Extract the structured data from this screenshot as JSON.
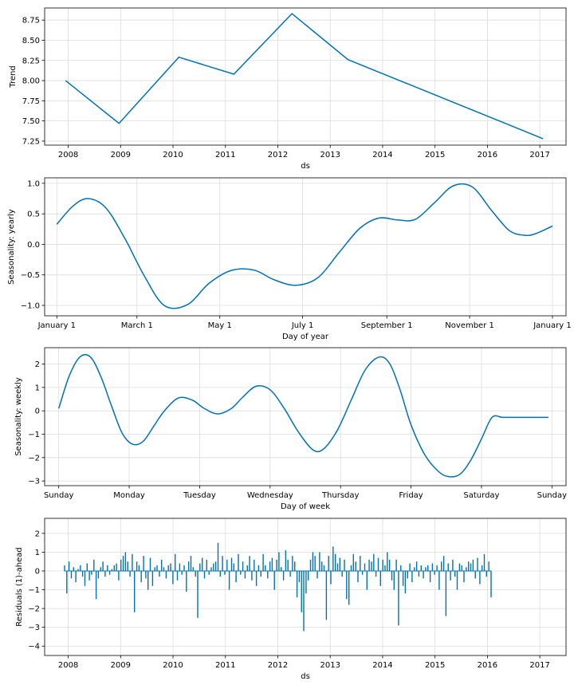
{
  "colors": {
    "line": "#0072B2",
    "grid": "#dcdcdc",
    "axis": "#000000"
  },
  "chart_data": [
    {
      "id": "trend",
      "type": "line",
      "xlabel": "ds",
      "ylabel": "Trend",
      "xlim": [
        2007.55,
        2017.5
      ],
      "ylim": [
        7.2,
        8.9
      ],
      "xticks": [
        2008,
        2009,
        2010,
        2011,
        2012,
        2013,
        2014,
        2015,
        2016,
        2017
      ],
      "xtick_labels": [
        "2008",
        "2009",
        "2010",
        "2011",
        "2012",
        "2013",
        "2014",
        "2015",
        "2016",
        "2017"
      ],
      "yticks": [
        7.25,
        7.5,
        7.75,
        8.0,
        8.25,
        8.5,
        8.75
      ],
      "ytick_labels": [
        "7.25",
        "7.50",
        "7.75",
        "8.00",
        "8.25",
        "8.50",
        "8.75"
      ],
      "grid": true,
      "series": [
        {
          "x": [
            2007.95,
            2008.97,
            2010.11,
            2011.16,
            2012.27,
            2013.34,
            2017.06
          ],
          "y": [
            8.0,
            7.47,
            8.29,
            8.08,
            8.83,
            8.26,
            7.28
          ]
        }
      ]
    },
    {
      "id": "yearly",
      "type": "line",
      "xlabel": "Day of year",
      "ylabel": "Seasonality: yearly",
      "xlim": [
        -9,
        375
      ],
      "ylim": [
        -1.17,
        1.09
      ],
      "xticks": [
        0,
        59,
        120,
        181,
        243,
        304,
        365
      ],
      "xtick_labels": [
        "January 1",
        "March 1",
        "May 1",
        "July 1",
        "September 1",
        "November 1",
        "January 1"
      ],
      "yticks": [
        -1.0,
        -0.5,
        0.0,
        0.5,
        1.0
      ],
      "ytick_labels": [
        "−1.0",
        "−0.5",
        "0.0",
        "0.5",
        "1.0"
      ],
      "grid": true,
      "series": [
        {
          "x": [
            0,
            12,
            23,
            36,
            50,
            64,
            79,
            96,
            112,
            128,
            145,
            160,
            176,
            192,
            208,
            223,
            237,
            251,
            264,
            278,
            292,
            306,
            320,
            333,
            344,
            352,
            365
          ],
          "y": [
            0.33,
            0.63,
            0.75,
            0.6,
            0.1,
            -0.5,
            -1.0,
            -0.99,
            -0.64,
            -0.43,
            -0.42,
            -0.58,
            -0.67,
            -0.55,
            -0.13,
            0.26,
            0.43,
            0.4,
            0.41,
            0.68,
            0.96,
            0.94,
            0.56,
            0.23,
            0.15,
            0.17,
            0.3
          ]
        }
      ]
    },
    {
      "id": "weekly",
      "type": "line",
      "xlabel": "Day of week",
      "ylabel": "Seasonality: weekly",
      "xlim": [
        -0.2,
        7.2
      ],
      "ylim": [
        -3.2,
        2.7
      ],
      "xticks": [
        0,
        1,
        2,
        3,
        4,
        5,
        6,
        7
      ],
      "xtick_labels": [
        "Sunday",
        "Monday",
        "Tuesday",
        "Wednesday",
        "Thursday",
        "Friday",
        "Saturday",
        "Sunday"
      ],
      "yticks": [
        -3,
        -2,
        -1,
        0,
        1,
        2
      ],
      "ytick_labels": [
        "−3",
        "−2",
        "−1",
        "0",
        "1",
        "2"
      ],
      "grid": true,
      "series": [
        {
          "x": [
            0,
            0.15,
            0.3,
            0.45,
            0.6,
            0.75,
            0.9,
            1.05,
            1.2,
            1.35,
            1.5,
            1.7,
            1.9,
            2.05,
            2.25,
            2.45,
            2.6,
            2.8,
            3.0,
            3.2,
            3.4,
            3.6,
            3.75,
            3.95,
            4.15,
            4.35,
            4.55,
            4.7,
            4.85,
            5.0,
            5.2,
            5.4,
            5.55,
            5.7,
            5.85,
            6.0,
            6.15,
            6.3,
            6.45,
            6.6,
            6.75,
            6.9,
            6.95
          ],
          "y": [
            0.1,
            1.5,
            2.3,
            2.3,
            1.45,
            0.2,
            -0.95,
            -1.43,
            -1.3,
            -0.65,
            0.0,
            0.55,
            0.45,
            0.13,
            -0.13,
            0.1,
            0.55,
            1.05,
            0.9,
            0.1,
            -0.9,
            -1.65,
            -1.65,
            -0.85,
            0.45,
            1.75,
            2.3,
            2.0,
            0.85,
            -0.6,
            -1.9,
            -2.62,
            -2.82,
            -2.7,
            -2.1,
            -1.2,
            -0.28,
            -0.28,
            -0.28,
            -0.28,
            -0.28,
            -0.28,
            -0.28
          ]
        }
      ]
    },
    {
      "id": "residuals",
      "type": "bar",
      "xlabel": "ds",
      "ylabel": "Residuals (1)-ahead",
      "xlim": [
        2007.55,
        2017.5
      ],
      "ylim": [
        -4.5,
        2.8
      ],
      "xticks": [
        2008,
        2009,
        2010,
        2011,
        2012,
        2013,
        2014,
        2015,
        2016,
        2017
      ],
      "xtick_labels": [
        "2008",
        "2009",
        "2010",
        "2011",
        "2012",
        "2013",
        "2014",
        "2015",
        "2016",
        "2017"
      ],
      "yticks": [
        -4,
        -3,
        -2,
        -1,
        0,
        1,
        2
      ],
      "ytick_labels": [
        "−4",
        "−3",
        "−2",
        "−1",
        "0",
        "1",
        "2"
      ],
      "grid": true,
      "series": [
        {
          "x_start": 2007.93,
          "x_end": 2016.07,
          "values": [
            0.3,
            -1.2,
            0.5,
            -0.4,
            0.2,
            -0.6,
            0.1,
            0.3,
            -0.3,
            -0.8,
            0.4,
            -0.5,
            -0.2,
            0.6,
            -1.5,
            -0.4,
            0.2,
            0.5,
            -0.3,
            0.3,
            -0.2,
            0.1,
            0.3,
            0.4,
            -0.5,
            0.6,
            0.8,
            1.0,
            0.5,
            -0.3,
            0.9,
            -2.2,
            0.5,
            0.3,
            -0.6,
            0.8,
            -0.4,
            -1.0,
            0.7,
            -0.8,
            0.2,
            0.3,
            -0.3,
            0.6,
            0.2,
            -0.4,
            0.3,
            0.4,
            -0.7,
            0.9,
            -0.5,
            0.4,
            -0.2,
            0.3,
            -1.1,
            0.5,
            0.8,
            0.2,
            -0.3,
            -2.5,
            0.4,
            0.7,
            -0.4,
            0.6,
            -0.2,
            0.2,
            0.4,
            0.5,
            1.5,
            -0.3,
            0.8,
            -0.2,
            0.6,
            -1.0,
            0.7,
            0.4,
            -0.6,
            0.9,
            -0.2,
            0.5,
            -0.4,
            0.3,
            0.8,
            -0.5,
            0.6,
            -0.8,
            0.3,
            -0.3,
            0.9,
            0.3,
            -0.4,
            0.5,
            0.7,
            -1.0,
            0.6,
            1.0,
            0.2,
            -0.5,
            1.1,
            0.6,
            -0.3,
            0.8,
            0.5,
            -1.4,
            -0.6,
            -2.2,
            -3.2,
            -1.2,
            -0.5,
            0.6,
            1.0,
            0.8,
            -0.4,
            1.0,
            0.5,
            0.3,
            -2.6,
            0.8,
            -0.7,
            1.3,
            0.9,
            0.4,
            0.7,
            -0.3,
            0.6,
            -1.5,
            -1.8,
            0.3,
            0.9,
            0.5,
            -0.6,
            0.8,
            -0.2,
            0.4,
            -1.0,
            0.6,
            0.5,
            0.9,
            -0.3,
            0.7,
            -0.8,
            0.6,
            0.3,
            1.0,
            0.6,
            -0.5,
            -1.0,
            0.6,
            -2.9,
            0.3,
            -0.8,
            -1.2,
            -0.4,
            0.4,
            -0.6,
            0.2,
            0.5,
            -0.3,
            0.3,
            -0.4,
            0.2,
            0.3,
            -0.6,
            0.4,
            -0.2,
            0.3,
            -1.0,
            0.5,
            0.8,
            -2.4,
            0.4,
            -0.5,
            0.6,
            -0.3,
            -1.0,
            0.4,
            0.3,
            -0.6,
            0.2,
            0.5,
            0.4,
            0.6,
            -0.4,
            0.7,
            -0.7,
            0.3,
            0.9,
            -0.3,
            0.5,
            -1.4
          ]
        }
      ]
    }
  ]
}
